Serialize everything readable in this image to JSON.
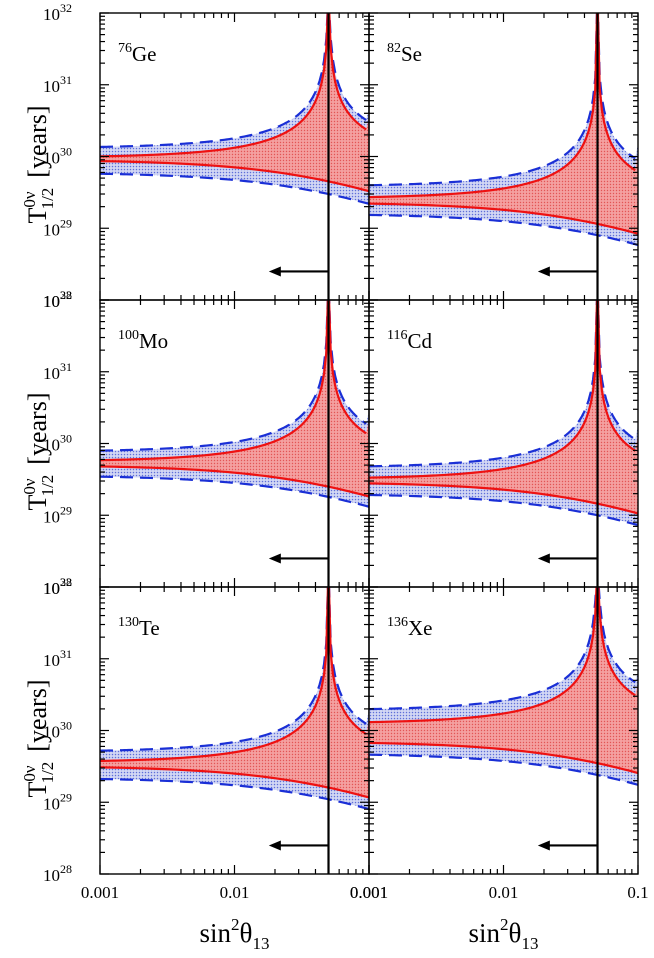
{
  "chart_data": {
    "type": "line",
    "title": "",
    "xlabel": {
      "base": "sin",
      "sup": "2",
      "symbol": "θ",
      "sub": "13"
    },
    "ylabel": {
      "base": "T",
      "sup": "0ν",
      "sub": "1/2",
      "unit": "[years]"
    },
    "x_scale": "log",
    "y_scale": "log",
    "xlim": [
      0.001,
      0.1
    ],
    "ylim": [
      1e+28,
      1e+32
    ],
    "x_ticks": [
      {
        "value": 0.001,
        "label": "0.001"
      },
      {
        "value": 0.01,
        "label": "0.01"
      },
      {
        "value": 0.1,
        "label": "0.1"
      }
    ],
    "x_tick_last_left_column": "0.001",
    "y_ticks": [
      {
        "value": 1e+28,
        "base": "10",
        "exp": "28"
      },
      {
        "value": 1e+29,
        "base": "10",
        "exp": "29"
      },
      {
        "value": 1e+30,
        "base": "10",
        "exp": "30"
      },
      {
        "value": 1e+31,
        "base": "10",
        "exp": "31"
      },
      {
        "value": 1e+32,
        "base": "10",
        "exp": "32"
      }
    ],
    "vertical_line_x": 0.05,
    "arrow": {
      "y": 2.5e+28,
      "x_from": 0.05,
      "x_to": 0.018,
      "direction": "left"
    },
    "series_styles": {
      "red_band": {
        "stroke": "#ee1111",
        "fill": "#f08a8a",
        "style": "solid"
      },
      "blue_band": {
        "stroke": "#1a2fd6",
        "fill": "#b9c1ef",
        "style": "dashed"
      },
      "vline": {
        "stroke": "#000000"
      }
    },
    "panels": [
      {
        "isotope": "Ge",
        "mass": "76",
        "red_lower_0": 9e+29,
        "red_upper_0": 9.6e+29,
        "blue_lower_0": 6e+29,
        "blue_upper_0": 1.3e+30
      },
      {
        "isotope": "Se",
        "mass": "82",
        "red_lower_0": 2.3e+29,
        "red_upper_0": 2.6e+29,
        "blue_lower_0": 1.6e+29,
        "blue_upper_0": 3.8e+29
      },
      {
        "isotope": "Mo",
        "mass": "100",
        "red_lower_0": 5e+29,
        "red_upper_0": 5.6e+29,
        "blue_lower_0": 3.6e+29,
        "blue_upper_0": 7.6e+29
      },
      {
        "isotope": "Cd",
        "mass": "116",
        "red_lower_0": 2.9e+29,
        "red_upper_0": 3.2e+29,
        "blue_lower_0": 2e+29,
        "blue_upper_0": 4.6e+29
      },
      {
        "isotope": "Te",
        "mass": "130",
        "red_lower_0": 3.2e+29,
        "red_upper_0": 3.6e+29,
        "blue_lower_0": 2.2e+29,
        "blue_upper_0": 5e+29
      },
      {
        "isotope": "Xe",
        "mass": "136",
        "red_lower_0": 7e+29,
        "red_upper_0": 1.25e+30,
        "blue_lower_0": 4.8e+29,
        "blue_upper_0": 1.9e+30
      }
    ]
  }
}
